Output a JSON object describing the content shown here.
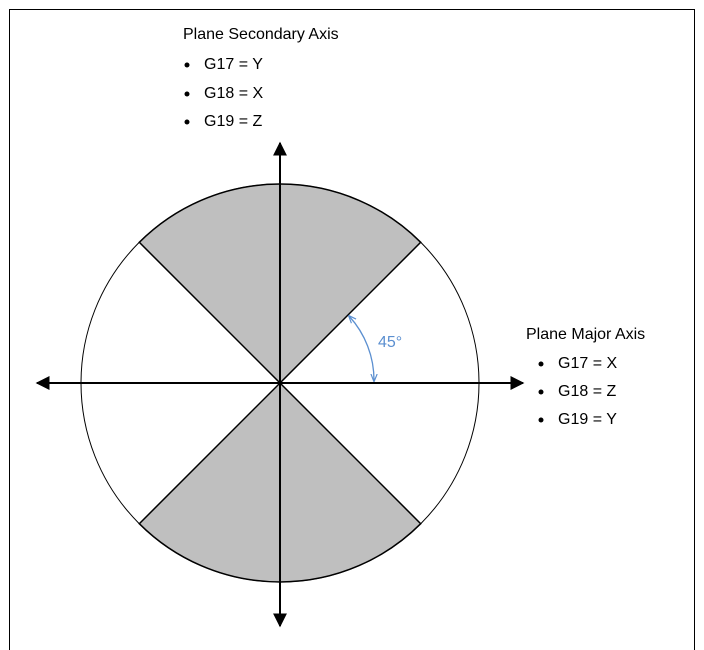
{
  "secondary_axis": {
    "title": "Plane Secondary Axis",
    "items": [
      "G17 = Y",
      "G18 = X",
      "G19 = Z"
    ]
  },
  "major_axis": {
    "title": "Plane Major Axis",
    "items": [
      "G17 = X",
      "G18 = Z",
      "G19 = Y"
    ]
  },
  "angle_label": "45°"
}
